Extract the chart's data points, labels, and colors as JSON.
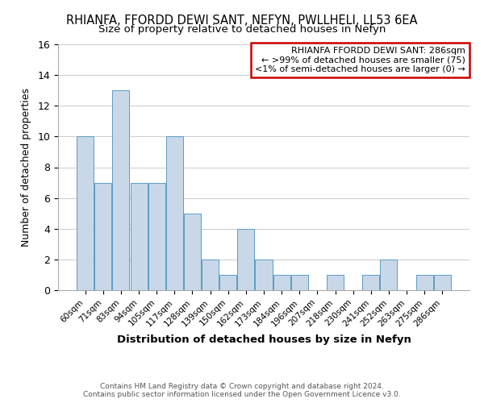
{
  "title": "RHIANFA, FFORDD DEWI SANT, NEFYN, PWLLHELI, LL53 6EA",
  "subtitle": "Size of property relative to detached houses in Nefyn",
  "xlabel": "Distribution of detached houses by size in Nefyn",
  "ylabel": "Number of detached properties",
  "bar_color": "#c8d8e8",
  "bar_edge_color": "#5a9cc5",
  "categories": [
    "60sqm",
    "71sqm",
    "83sqm",
    "94sqm",
    "105sqm",
    "117sqm",
    "128sqm",
    "139sqm",
    "150sqm",
    "162sqm",
    "173sqm",
    "184sqm",
    "196sqm",
    "207sqm",
    "218sqm",
    "230sqm",
    "241sqm",
    "252sqm",
    "263sqm",
    "275sqm",
    "286sqm"
  ],
  "values": [
    10,
    7,
    13,
    7,
    7,
    10,
    5,
    2,
    1,
    4,
    2,
    1,
    1,
    0,
    1,
    0,
    1,
    2,
    0,
    1,
    1
  ],
  "ylim": [
    0,
    16
  ],
  "yticks": [
    0,
    2,
    4,
    6,
    8,
    10,
    12,
    14,
    16
  ],
  "annotation_title": "RHIANFA FFORDD DEWI SANT: 286sqm",
  "annotation_line1": "← >99% of detached houses are smaller (75)",
  "annotation_line2": "<1% of semi-detached houses are larger (0) →",
  "annotation_box_color": "#ffffff",
  "annotation_box_edge_color": "#cc0000",
  "footer_line1": "Contains HM Land Registry data © Crown copyright and database right 2024.",
  "footer_line2": "Contains public sector information licensed under the Open Government Licence v3.0.",
  "grid_color": "#cccccc"
}
